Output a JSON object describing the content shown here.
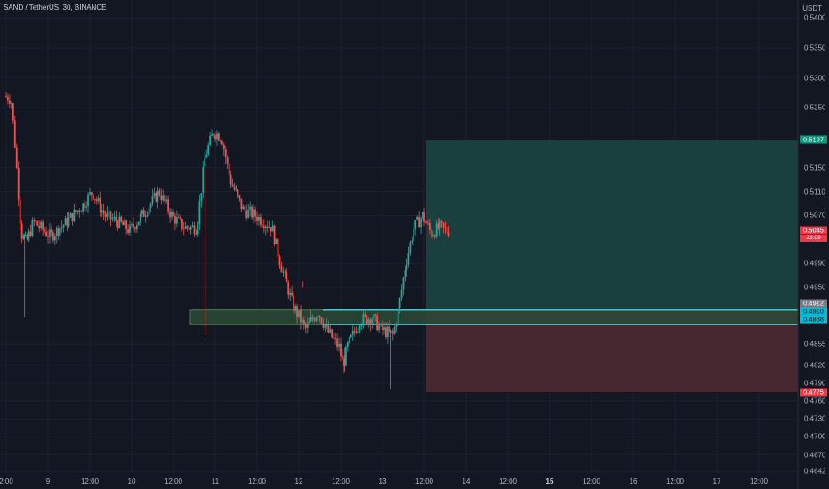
{
  "header": {
    "symbol_title": "SAND / TetherUS, 30, BINANCE",
    "currency": "USDT"
  },
  "price_axis": {
    "labels": [
      "0.5400",
      "0.5350",
      "0.5300",
      "0.5250",
      "0.5150",
      "0.5110",
      "0.5070",
      "0.4990",
      "0.4950",
      "0.4855",
      "0.4820",
      "0.4790",
      "0.4760",
      "0.4730",
      "0.4700",
      "0.4670",
      "0.4642"
    ]
  },
  "time_axis": {
    "labels": [
      {
        "text": "2:00",
        "bold": false
      },
      {
        "text": "9",
        "bold": false
      },
      {
        "text": "12:00",
        "bold": false
      },
      {
        "text": "10",
        "bold": false
      },
      {
        "text": "12:00",
        "bold": false
      },
      {
        "text": "11",
        "bold": false
      },
      {
        "text": "12:00",
        "bold": false
      },
      {
        "text": "12",
        "bold": false
      },
      {
        "text": "12:00",
        "bold": false
      },
      {
        "text": "13",
        "bold": false
      },
      {
        "text": "12:00",
        "bold": false
      },
      {
        "text": "14",
        "bold": false
      },
      {
        "text": "12:00",
        "bold": false
      },
      {
        "text": "15",
        "bold": true
      },
      {
        "text": "12:00",
        "bold": false
      },
      {
        "text": "16",
        "bold": false
      },
      {
        "text": "12:00",
        "bold": false
      },
      {
        "text": "17",
        "bold": false
      },
      {
        "text": "12:00",
        "bold": false
      }
    ]
  },
  "price_tags": {
    "take_profit": "0.5197",
    "current_price": "0.5045",
    "countdown": "23:09",
    "entry_top": "0.4912",
    "entry": "0.4910",
    "entry_bottom": "0.4888",
    "stop_loss": "0.4775"
  },
  "colors": {
    "background": "#131722",
    "up": "#26a69a",
    "down": "#ef5350",
    "profit_zone": "#1a3f3f",
    "loss_zone": "#472730",
    "entry_zone": "#2c4a35",
    "entry_line": "#4fc3c8"
  },
  "chart_data": {
    "type": "candlestick",
    "symbol": "SAND / TetherUS",
    "interval": "30",
    "exchange": "BINANCE",
    "y_unit": "USDT",
    "ylim": [
      0.4642,
      0.542
    ],
    "current_price": 0.5045,
    "position": {
      "type": "long",
      "entry": 0.491,
      "take_profit": 0.5197,
      "stop_loss": 0.4775
    },
    "demand_zone": [
      0.4888,
      0.4912
    ],
    "price_path": [
      [
        8.0,
        0.527
      ],
      [
        8.08,
        0.5265
      ],
      [
        8.12,
        0.52
      ],
      [
        8.2,
        0.504
      ],
      [
        8.26,
        0.5025
      ],
      [
        8.35,
        0.506
      ],
      [
        8.55,
        0.5035
      ],
      [
        8.75,
        0.506
      ],
      [
        8.95,
        0.509
      ],
      [
        9.05,
        0.511
      ],
      [
        9.2,
        0.507
      ],
      [
        9.35,
        0.506
      ],
      [
        9.5,
        0.5045
      ],
      [
        9.7,
        0.508
      ],
      [
        9.85,
        0.511
      ],
      [
        10.0,
        0.507
      ],
      [
        10.15,
        0.505
      ],
      [
        10.3,
        0.505
      ],
      [
        10.4,
        0.517
      ],
      [
        10.5,
        0.521
      ],
      [
        10.6,
        0.52
      ],
      [
        10.7,
        0.513
      ],
      [
        10.85,
        0.508
      ],
      [
        11.0,
        0.507
      ],
      [
        11.2,
        0.505
      ],
      [
        11.3,
        0.499
      ],
      [
        11.45,
        0.492
      ],
      [
        11.6,
        0.488
      ],
      [
        11.75,
        0.491
      ],
      [
        11.85,
        0.488
      ],
      [
        12.0,
        0.485
      ],
      [
        12.05,
        0.482
      ],
      [
        12.1,
        0.485
      ],
      [
        12.25,
        0.4895
      ],
      [
        12.4,
        0.49
      ],
      [
        12.5,
        0.488
      ],
      [
        12.65,
        0.487
      ],
      [
        12.72,
        0.492
      ],
      [
        12.8,
        0.499
      ],
      [
        12.9,
        0.505
      ],
      [
        13.0,
        0.507
      ],
      [
        13.1,
        0.504
      ],
      [
        13.2,
        0.505
      ],
      [
        13.3,
        0.5045
      ]
    ]
  }
}
